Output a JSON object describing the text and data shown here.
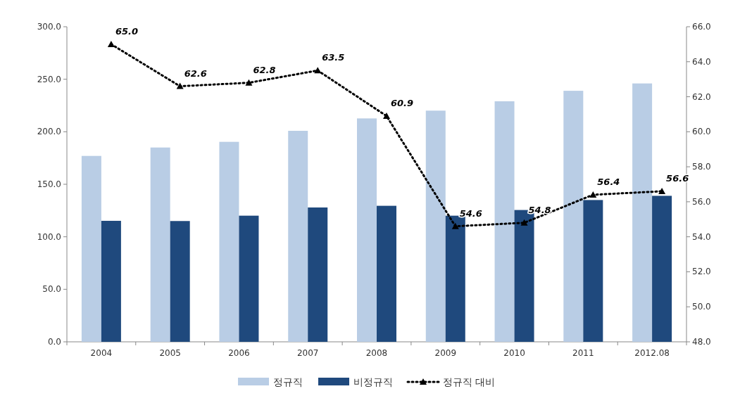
{
  "chart_data": {
    "type": "bar",
    "categories": [
      "2004",
      "2005",
      "2006",
      "2007",
      "2008",
      "2009",
      "2010",
      "2011",
      "2012.08"
    ],
    "series": [
      {
        "name": "정규직",
        "color": "#b9cde5",
        "values": [
          177.0,
          185.0,
          190.4,
          200.9,
          212.7,
          220.1,
          229.0,
          239.0,
          246.0
        ]
      },
      {
        "name": "비정규직",
        "color": "#1f497d",
        "values": [
          115.2,
          115.0,
          120.1,
          127.9,
          129.5,
          120.1,
          125.5,
          135.0,
          139.0
        ]
      },
      {
        "name": "정규직 대비",
        "type": "line",
        "axis": "y2",
        "color": "#000000",
        "marker": "triangle",
        "line_style": "dotted",
        "values": [
          65.0,
          62.6,
          62.8,
          63.5,
          60.9,
          54.6,
          54.8,
          56.4,
          56.6
        ],
        "value_labels": [
          "65.0",
          "62.6",
          "62.8",
          "63.5",
          "60.9",
          "54.6",
          "54.8",
          "56.4",
          "56.6"
        ]
      }
    ],
    "ylim": [
      0,
      300
    ],
    "yticks": [
      {
        "value": 0,
        "label": "0.0"
      },
      {
        "value": 50,
        "label": "50.0"
      },
      {
        "value": 100,
        "label": "100.0"
      },
      {
        "value": 150,
        "label": "150.0"
      },
      {
        "value": 200,
        "label": "200.0"
      },
      {
        "value": 250,
        "label": "250.0"
      },
      {
        "value": 300,
        "label": "300.0"
      }
    ],
    "y2lim": [
      48,
      66
    ],
    "y2ticks": [
      {
        "value": 48,
        "label": "48.0"
      },
      {
        "value": 50,
        "label": "50.0"
      },
      {
        "value": 52,
        "label": "52.0"
      },
      {
        "value": 54,
        "label": "54.0"
      },
      {
        "value": 56,
        "label": "56.0"
      },
      {
        "value": 58,
        "label": "58.0"
      },
      {
        "value": 60,
        "label": "60.0"
      },
      {
        "value": 62,
        "label": "62.0"
      },
      {
        "value": 64,
        "label": "64.0"
      },
      {
        "value": 66,
        "label": "66.0"
      }
    ],
    "grid": false,
    "legend": "bottom"
  }
}
